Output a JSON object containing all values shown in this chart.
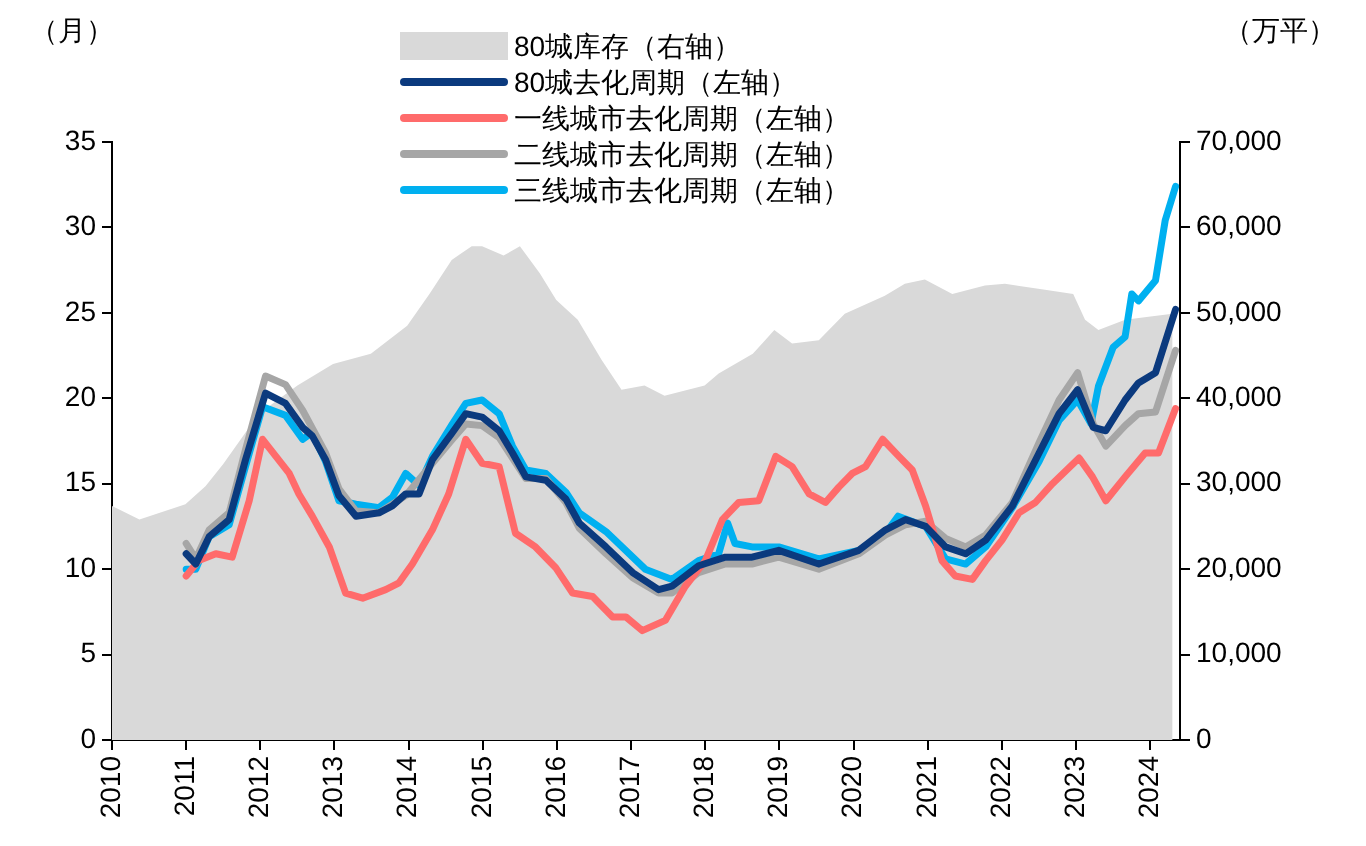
{
  "chart_data": {
    "type": "line",
    "ylabel": "（月）",
    "y2label": "（万平）",
    "xlim": [
      2010,
      2024.4
    ],
    "xticks": [
      2010,
      2011,
      2012,
      2013,
      2014,
      2015,
      2016,
      2017,
      2018,
      2019,
      2020,
      2021,
      2022,
      2023,
      2024
    ],
    "ylim": [
      0,
      35
    ],
    "yticks": [
      0,
      5,
      10,
      15,
      20,
      25,
      30,
      35
    ],
    "y2lim": [
      0,
      70000
    ],
    "y2ticks": [
      0,
      {
        "value": 10000,
        "label": "10,000"
      },
      {
        "value": 20000,
        "label": "20,000"
      },
      {
        "value": 30000,
        "label": "30,000"
      },
      {
        "value": 40000,
        "label": "40,000"
      },
      {
        "value": 50000,
        "label": "50,000"
      },
      {
        "value": 60000,
        "label": "60,000"
      },
      {
        "value": 70000,
        "label": "70,000"
      }
    ],
    "grid": false,
    "legend": "top",
    "marker": "none",
    "line_style": "solid",
    "series": [
      {
        "name": "80城库存（右轴）",
        "type": "area",
        "axis": "y2",
        "color": "#d9d9d9",
        "x": [
          2010.0,
          2010.37,
          2010.99,
          2011.26,
          2011.5,
          2011.98,
          2012.5,
          2012.98,
          2013.49,
          2013.98,
          2014.28,
          2014.58,
          2014.85,
          2014.99,
          2015.28,
          2015.5,
          2015.77,
          2015.99,
          2016.28,
          2016.6,
          2016.87,
          2017.18,
          2017.45,
          2017.99,
          2018.18,
          2018.64,
          2018.93,
          2019.17,
          2019.53,
          2019.88,
          2020.42,
          2020.69,
          2020.96,
          2021.33,
          2021.77,
          2022.04,
          2022.58,
          2022.96,
          2023.12,
          2023.3,
          2023.66,
          2024.03,
          2024.3
        ],
        "values": [
          27400,
          25800,
          27600,
          29700,
          32300,
          38200,
          41500,
          44000,
          45200,
          48500,
          52200,
          56200,
          57800,
          57800,
          56700,
          57800,
          54600,
          51500,
          49200,
          44500,
          41000,
          41500,
          40300,
          41500,
          42900,
          45200,
          48000,
          46400,
          46800,
          49900,
          52000,
          53400,
          53900,
          52200,
          53200,
          53400,
          52700,
          52200,
          49200,
          48000,
          49200,
          49600,
          49900
        ]
      },
      {
        "name": "80城去化周期（左轴）",
        "color": "#0b3a7e",
        "x": [
          2011.0,
          2011.13,
          2011.31,
          2011.58,
          2011.8,
          2012.07,
          2012.34,
          2012.57,
          2012.7,
          2012.88,
          2013.06,
          2013.29,
          2013.6,
          2013.78,
          2013.96,
          2014.14,
          2014.32,
          2014.59,
          2014.77,
          2014.99,
          2015.22,
          2015.4,
          2015.58,
          2015.85,
          2016.12,
          2016.3,
          2016.66,
          2017.02,
          2017.37,
          2017.55,
          2017.91,
          2018.27,
          2018.63,
          2018.99,
          2019.53,
          2020.07,
          2020.43,
          2020.7,
          2020.97,
          2021.24,
          2021.51,
          2021.78,
          2022.14,
          2022.5,
          2022.77,
          2023.02,
          2023.23,
          2023.4,
          2023.66,
          2023.84,
          2024.07,
          2024.34
        ],
        "values": [
          10.9,
          10.3,
          11.9,
          12.9,
          16.4,
          20.3,
          19.7,
          18.3,
          17.8,
          16.4,
          14.3,
          13.1,
          13.3,
          13.7,
          14.4,
          14.4,
          16.4,
          18.0,
          19.1,
          18.9,
          18.1,
          16.8,
          15.4,
          15.2,
          14.1,
          12.7,
          11.3,
          9.8,
          8.8,
          9.0,
          10.2,
          10.7,
          10.7,
          11.1,
          10.3,
          11.1,
          12.3,
          12.9,
          12.5,
          11.3,
          10.9,
          11.7,
          13.7,
          16.8,
          19.1,
          20.5,
          18.3,
          18.1,
          19.9,
          20.9,
          21.5,
          25.2
        ]
      },
      {
        "name": "一线城市去化周期（左轴）",
        "color": "#ff6b6b",
        "x": [
          2011.0,
          2011.17,
          2011.4,
          2011.62,
          2011.85,
          2012.03,
          2012.21,
          2012.39,
          2012.52,
          2012.7,
          2012.93,
          2013.15,
          2013.38,
          2013.69,
          2013.87,
          2014.05,
          2014.32,
          2014.54,
          2014.77,
          2014.99,
          2015.22,
          2015.44,
          2015.71,
          2015.98,
          2016.21,
          2016.48,
          2016.75,
          2016.93,
          2017.15,
          2017.46,
          2017.73,
          2018.0,
          2018.23,
          2018.45,
          2018.72,
          2018.95,
          2019.17,
          2019.4,
          2019.62,
          2019.8,
          2019.98,
          2020.16,
          2020.39,
          2020.61,
          2020.79,
          2020.97,
          2021.19,
          2021.37,
          2021.6,
          2021.78,
          2022.0,
          2022.23,
          2022.45,
          2022.68,
          2023.04,
          2023.22,
          2023.4,
          2023.66,
          2023.93,
          2024.11,
          2024.34
        ],
        "values": [
          9.6,
          10.5,
          10.9,
          10.7,
          14.0,
          17.6,
          16.6,
          15.6,
          14.4,
          13.1,
          11.3,
          8.6,
          8.3,
          8.8,
          9.2,
          10.3,
          12.3,
          14.4,
          17.6,
          16.2,
          16.0,
          12.1,
          11.3,
          10.1,
          8.6,
          8.4,
          7.2,
          7.2,
          6.4,
          7.0,
          9.0,
          10.5,
          12.9,
          13.9,
          14.0,
          16.6,
          16.0,
          14.4,
          13.9,
          14.8,
          15.6,
          16.0,
          17.6,
          16.6,
          15.8,
          13.7,
          10.5,
          9.6,
          9.4,
          10.5,
          11.7,
          13.3,
          13.9,
          15.0,
          16.5,
          15.4,
          14.0,
          15.4,
          16.8,
          16.8,
          19.4
        ]
      },
      {
        "name": "二线城市去化周期（左轴）",
        "color": "#a6a6a6",
        "x": [
          2011.0,
          2011.13,
          2011.31,
          2011.58,
          2011.8,
          2012.07,
          2012.34,
          2012.57,
          2012.88,
          2013.06,
          2013.29,
          2013.6,
          2013.96,
          2014.32,
          2014.59,
          2014.77,
          2014.99,
          2015.22,
          2015.4,
          2015.58,
          2015.85,
          2016.12,
          2016.3,
          2016.66,
          2017.02,
          2017.37,
          2017.55,
          2017.91,
          2018.27,
          2018.63,
          2018.99,
          2019.53,
          2020.07,
          2020.43,
          2020.7,
          2020.97,
          2021.24,
          2021.51,
          2021.78,
          2022.14,
          2022.5,
          2022.77,
          2023.02,
          2023.23,
          2023.4,
          2023.66,
          2023.84,
          2024.07,
          2024.34
        ],
        "values": [
          11.5,
          10.6,
          12.3,
          13.3,
          17.0,
          21.3,
          20.8,
          19.3,
          16.8,
          14.7,
          13.4,
          13.3,
          14.3,
          16.2,
          17.6,
          18.5,
          18.4,
          17.7,
          16.5,
          15.3,
          15.3,
          13.9,
          12.4,
          10.9,
          9.5,
          8.6,
          8.6,
          9.8,
          10.3,
          10.3,
          10.7,
          10.0,
          10.9,
          12.0,
          12.6,
          12.8,
          11.8,
          11.3,
          12.0,
          13.9,
          17.4,
          19.9,
          21.5,
          18.5,
          17.2,
          18.4,
          19.1,
          19.2,
          22.8
        ]
      },
      {
        "name": "三线城市去化周期（左轴）",
        "color": "#00b0f0",
        "x": [
          2011.0,
          2011.13,
          2011.31,
          2011.58,
          2011.8,
          2012.03,
          2012.34,
          2012.57,
          2012.7,
          2012.88,
          2013.06,
          2013.29,
          2013.6,
          2013.78,
          2013.96,
          2014.14,
          2014.32,
          2014.59,
          2014.77,
          2014.99,
          2015.22,
          2015.4,
          2015.58,
          2015.85,
          2016.12,
          2016.3,
          2016.66,
          2017.19,
          2017.55,
          2017.91,
          2018.18,
          2018.3,
          2018.4,
          2018.63,
          2018.99,
          2019.53,
          2020.07,
          2020.43,
          2020.6,
          2020.97,
          2021.24,
          2021.51,
          2021.78,
          2022.14,
          2022.5,
          2022.77,
          2023.02,
          2023.2,
          2023.3,
          2023.5,
          2023.66,
          2023.75,
          2023.84,
          2024.07,
          2024.2,
          2024.34
        ],
        "values": [
          10.0,
          10.0,
          11.9,
          12.6,
          16.0,
          19.5,
          19.0,
          17.6,
          18.0,
          16.3,
          14.0,
          13.8,
          13.6,
          14.2,
          15.6,
          14.9,
          16.6,
          18.5,
          19.7,
          19.9,
          19.1,
          17.2,
          15.8,
          15.6,
          14.5,
          13.3,
          12.2,
          10.0,
          9.4,
          10.5,
          10.9,
          12.7,
          11.5,
          11.3,
          11.3,
          10.6,
          11.1,
          12.1,
          13.1,
          12.5,
          10.6,
          10.3,
          11.3,
          13.6,
          16.3,
          18.7,
          19.9,
          18.5,
          20.7,
          23.0,
          23.6,
          26.1,
          25.7,
          26.9,
          30.4,
          32.4
        ]
      }
    ]
  }
}
